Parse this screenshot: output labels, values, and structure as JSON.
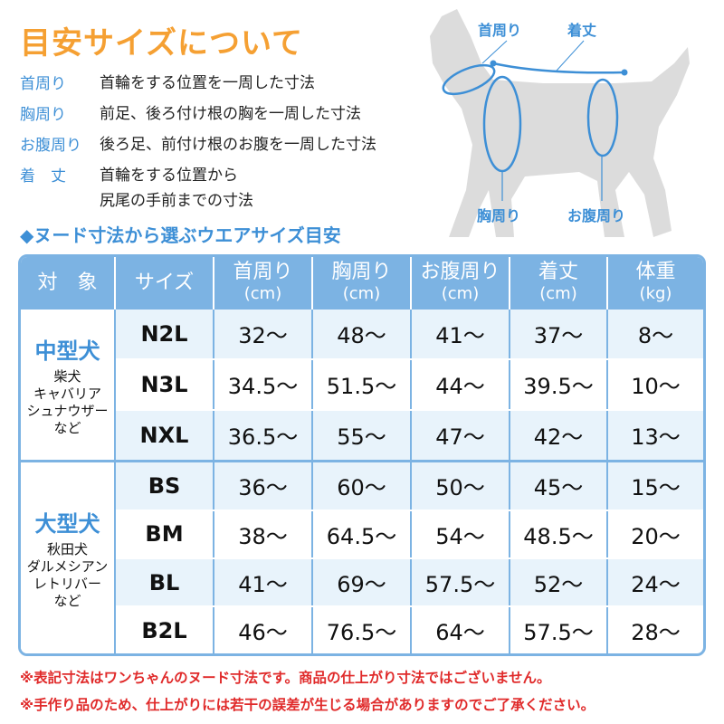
{
  "title": "目安サイズについて",
  "definitions": [
    {
      "term": "首周り",
      "desc": "首輪をする位置を一周した寸法"
    },
    {
      "term": "胸周り",
      "desc": "前足、後ろ付け根の胸を一周した寸法"
    },
    {
      "term": "お腹周り",
      "desc": "後ろ足、前付け根のお腹を一周した寸法"
    },
    {
      "term": "着　丈",
      "desc": "首輪をする位置から",
      "desc2": "尻尾の手前までの寸法"
    }
  ],
  "diagram_labels": {
    "neck": "首周り",
    "length": "着丈",
    "chest": "胸周り",
    "belly": "お腹周り"
  },
  "subtitle": "◆ヌード寸法から選ぶウエアサイズ目安",
  "colors": {
    "title": "#f5a033",
    "accent": "#3d8fd6",
    "header": "#7cb3e3",
    "row_alt": "#e8f3fb",
    "note": "#e02a2a",
    "dog": "#dcdcdc"
  },
  "table": {
    "headers": [
      {
        "label": "対　象",
        "unit": ""
      },
      {
        "label": "サイズ",
        "unit": ""
      },
      {
        "label": "首周り",
        "unit": "(cm)"
      },
      {
        "label": "胸周り",
        "unit": "(cm)"
      },
      {
        "label": "お腹周り",
        "unit": "(cm)"
      },
      {
        "label": "着丈",
        "unit": "(cm)"
      },
      {
        "label": "体重",
        "unit": "(kg)"
      }
    ],
    "groups": [
      {
        "name": "中型犬",
        "breeds": "柴犬\nキャバリア\nシュナウザー\nなど",
        "rows": [
          [
            "N2L",
            "32〜",
            "48〜",
            "41〜",
            "37〜",
            "8〜"
          ],
          [
            "N3L",
            "34.5〜",
            "51.5〜",
            "44〜",
            "39.5〜",
            "10〜"
          ],
          [
            "NXL",
            "36.5〜",
            "55〜",
            "47〜",
            "42〜",
            "13〜"
          ]
        ]
      },
      {
        "name": "大型犬",
        "breeds": "秋田犬\nダルメシアン\nレトリバー\nなど",
        "rows": [
          [
            "BS",
            "36〜",
            "60〜",
            "50〜",
            "45〜",
            "15〜"
          ],
          [
            "BM",
            "38〜",
            "64.5〜",
            "54〜",
            "48.5〜",
            "20〜"
          ],
          [
            "BL",
            "41〜",
            "69〜",
            "57.5〜",
            "52〜",
            "24〜"
          ],
          [
            "B2L",
            "46〜",
            "76.5〜",
            "64〜",
            "57.5〜",
            "28〜"
          ]
        ]
      }
    ]
  },
  "notes": [
    "※表記寸法はワンちゃんのヌード寸法です。商品の仕上がり寸法ではございません。",
    "※手作り品のため、仕上がりには若干の誤差が生じる場合がありますのでご了承ください。"
  ]
}
